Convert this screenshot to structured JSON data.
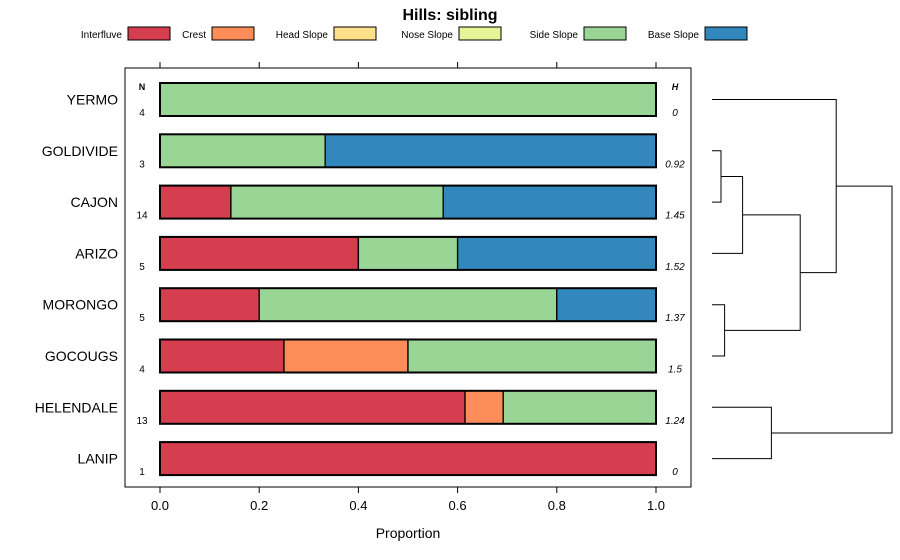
{
  "chart_data": {
    "type": "bar",
    "orientation": "horizontal",
    "stacked": true,
    "title": "Hills: sibling",
    "xlabel": "Proportion",
    "ylabel": "",
    "xlim": [
      0,
      1
    ],
    "x_ticks": [
      "0.0",
      "0.2",
      "0.4",
      "0.6",
      "0.8",
      "1.0"
    ],
    "x_tick_values": [
      0,
      0.2,
      0.4,
      0.6,
      0.8,
      1.0
    ],
    "legend_position": "top",
    "n_header": "N",
    "h_header": "H",
    "categories": [
      "YERMO",
      "GOLDIVIDE",
      "CAJON",
      "ARIZO",
      "MORONGO",
      "GOCOUGS",
      "HELENDALE",
      "LANIP"
    ],
    "n_values": [
      "4",
      "3",
      "14",
      "5",
      "5",
      "4",
      "13",
      "1"
    ],
    "h_values": [
      "0",
      "0.92",
      "1.45",
      "1.52",
      "1.37",
      "1.5",
      "1.24",
      "0"
    ],
    "series": [
      {
        "name": "Interfluve",
        "color": "#D53E4F",
        "values": [
          0,
          0,
          0.143,
          0.4,
          0.2,
          0.25,
          0.615,
          1.0
        ]
      },
      {
        "name": "Crest",
        "color": "#FC8D59",
        "values": [
          0,
          0,
          0,
          0,
          0,
          0.25,
          0.077,
          0
        ]
      },
      {
        "name": "Head Slope",
        "color": "#FEE08B",
        "values": [
          0,
          0,
          0,
          0,
          0,
          0,
          0,
          0
        ]
      },
      {
        "name": "Nose Slope",
        "color": "#E6F598",
        "values": [
          0,
          0,
          0,
          0,
          0,
          0,
          0,
          0
        ]
      },
      {
        "name": "Side Slope",
        "color": "#99D594",
        "values": [
          1.0,
          0.333,
          0.428,
          0.2,
          0.6,
          0.5,
          0.308,
          0
        ]
      },
      {
        "name": "Base Slope",
        "color": "#3288BD",
        "values": [
          0,
          0.667,
          0.429,
          0.4,
          0.2,
          0,
          0,
          0
        ]
      }
    ],
    "dendrogram": {
      "leaf_order": [
        "YERMO",
        "GOLDIVIDE",
        "CAJON",
        "ARIZO",
        "MORONGO",
        "GOCOUGS",
        "HELENDALE",
        "LANIP"
      ],
      "merges": [
        {
          "left": "GOLDIVIDE",
          "right": "CAJON",
          "height": 0.05
        },
        {
          "left": "MORONGO",
          "right": "GOCOUGS",
          "height": 0.07
        },
        {
          "left": "HELENDALE",
          "right": "LANIP",
          "height": 0.33
        },
        {
          "left": "c0",
          "right": "ARIZO",
          "height": 0.17
        },
        {
          "left": "c3",
          "right": "c1",
          "height": 0.49
        },
        {
          "left": "YERMO",
          "right": "c4",
          "height": 0.69
        },
        {
          "left": "c5",
          "right": "c2",
          "height": 1.0
        }
      ]
    }
  }
}
